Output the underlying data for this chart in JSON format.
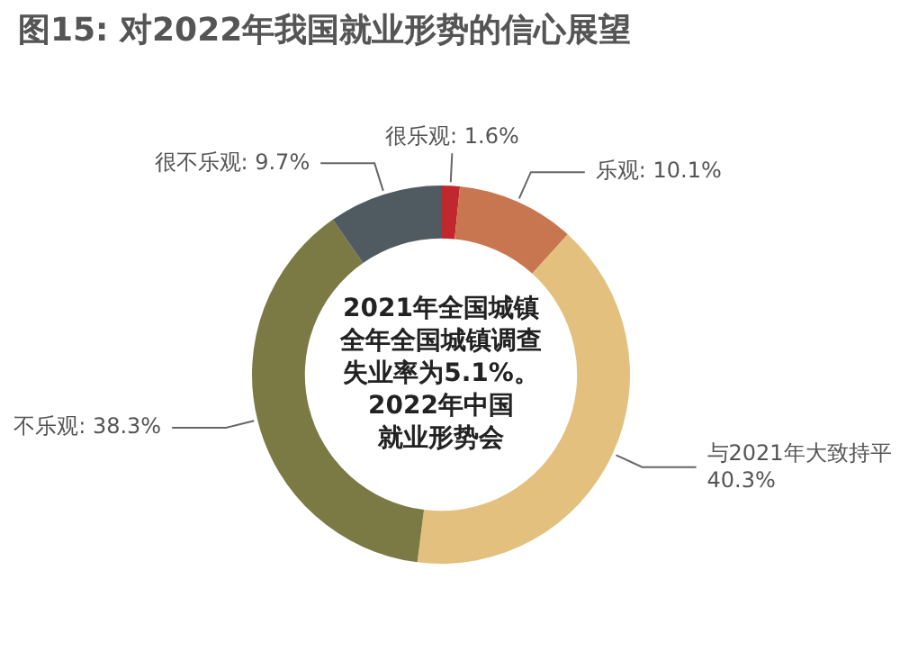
{
  "chart_data": {
    "type": "donut",
    "title": "图15: 对2022年我国就业形势的信心展望",
    "categories": [
      "很乐观",
      "乐观",
      "与2021年大致持平",
      "不乐观",
      "很不乐观"
    ],
    "values": [
      1.6,
      10.1,
      40.3,
      38.3,
      9.7
    ],
    "value_labels": [
      "1.6%",
      "10.1%",
      "40.3%",
      "38.3%",
      "9.7%"
    ],
    "colors": [
      "#c0282d",
      "#c8764f",
      "#e4c07e",
      "#7b7a45",
      "#4f5b61"
    ],
    "annotations": [
      "2021年全国城镇",
      "全年全国城镇调查",
      "失业率为5.1%。",
      "2022年中国",
      "就业形势会"
    ],
    "legend": false
  }
}
